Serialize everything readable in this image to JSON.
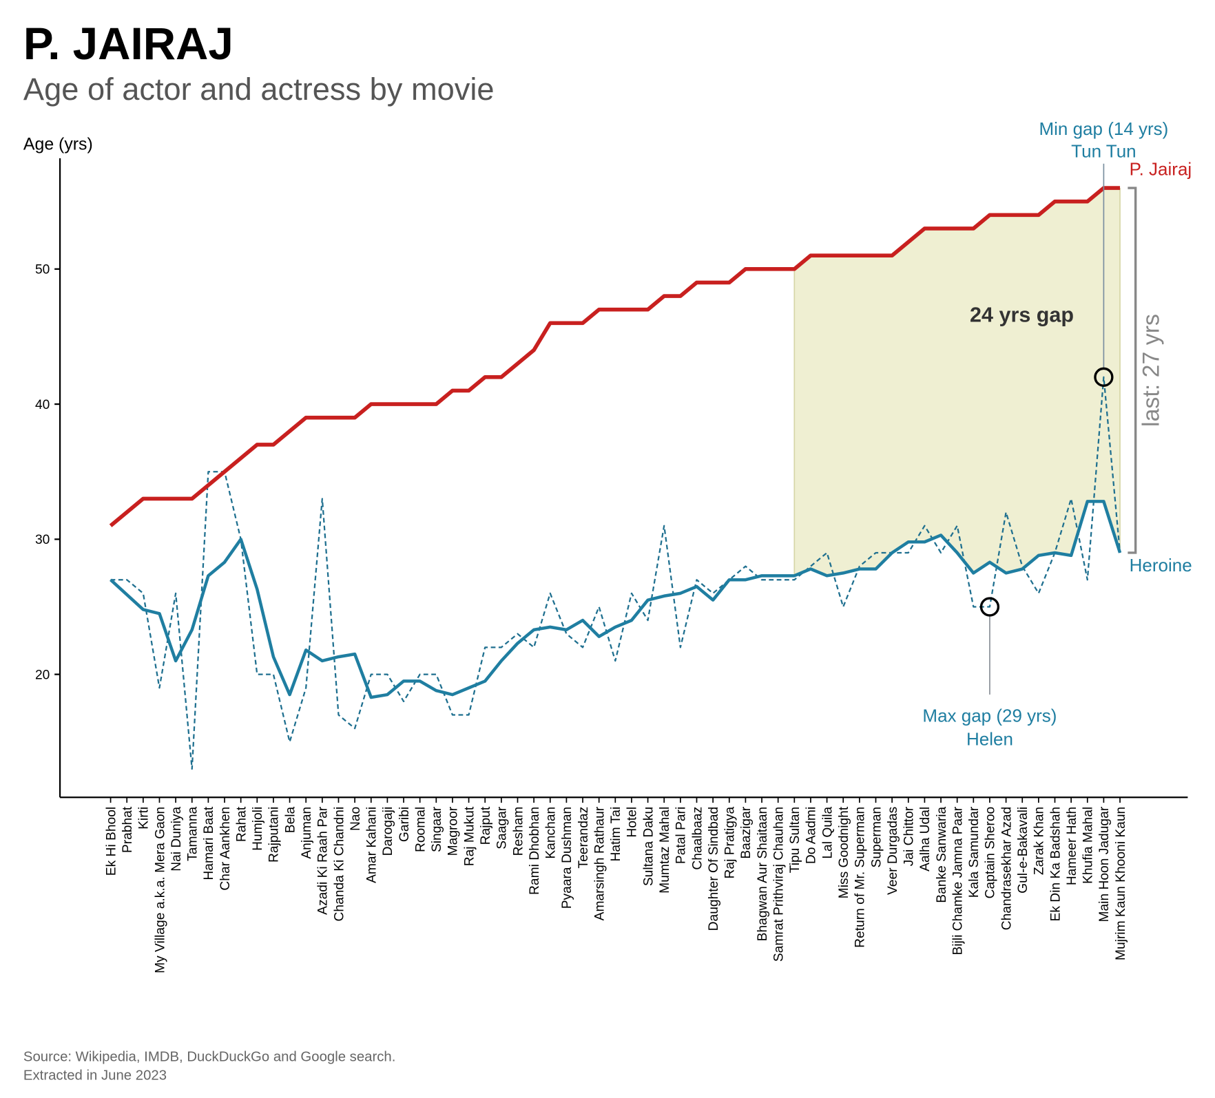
{
  "chart_data": {
    "type": "line",
    "title": "P. JAIRAJ",
    "subtitle": "Age of actor and actress by movie",
    "y_label": "Age (yrs)",
    "categories": [
      "Ek Hi Bhool",
      "Prabhat",
      "Kirti",
      "My Village a.k.a. Mera Gaon",
      "Nai Duniya",
      "Tamanna",
      "Hamari Baat",
      "Char Aankhen",
      "Rahat",
      "Humjoli",
      "Rajputani",
      "Bela",
      "Anjuman",
      "Azadi Ki Raah Par",
      "Chanda Ki Chandni",
      "Nao",
      "Amar Kahani",
      "Darogaji",
      "Garibi",
      "Roomal",
      "Singaar",
      "Magroor",
      "Raj Mukut",
      "Rajput",
      "Saagar",
      "Resham",
      "Rami Dhobhan",
      "Kanchan",
      "Pyaara Dushman",
      "Teerandaz",
      "Amarsingh Rathaur",
      "Hatim Tai",
      "Hotel",
      "Sultana Daku",
      "Mumtaz Mahal",
      "Patal Pari",
      "Chaalbaaz",
      "Daughter Of Sindbad",
      "Raj Pratigya",
      "Baazigar",
      "Bhagwan Aur Shaitaan",
      "Samrat Prithviraj Chauhan",
      "Tipu Sultan",
      "Do Aadmi",
      "Lal Quila",
      "Miss Goodnight",
      "Return of Mr. Superman",
      "Superman",
      "Veer Durgadas",
      "Jai Chittor",
      "Aalha Udal",
      "Banke Sanwaria",
      "Bijli Chamke Jamna Paar",
      "Kala Samundar",
      "Captain Sheroo",
      "Chandrasekhar Azad",
      "Gul-e-Bakavali",
      "Zarak Khan",
      "Ek Din Ka Badshah",
      "Hameer Hath",
      "Khufia Mahal",
      "Main Hoon Jadugar",
      "Mujrim Kaun Khooni Kaun"
    ],
    "series": [
      {
        "name": "P. Jairaj",
        "color": "#c8201f",
        "width": 5,
        "values": [
          31,
          32,
          33,
          33,
          33,
          33,
          34,
          35,
          36,
          37,
          37,
          38,
          39,
          39,
          39,
          39,
          40,
          40,
          40,
          40,
          40,
          41,
          41,
          42,
          42,
          43,
          44,
          46,
          46,
          46,
          47,
          47,
          47,
          47,
          48,
          48,
          49,
          49,
          49,
          50,
          50,
          50,
          50,
          51,
          51,
          51,
          51,
          51,
          51,
          52,
          53,
          53,
          53,
          53,
          54,
          54,
          54,
          54,
          55,
          55,
          55,
          56,
          56
        ]
      },
      {
        "name": "Heroine",
        "color": "#1f7ea1",
        "width": 4,
        "values": [
          27,
          25.9,
          24.8,
          24.5,
          21,
          23.3,
          27.3,
          28.3,
          30,
          26.3,
          21.3,
          18.5,
          21.8,
          21,
          21.3,
          21.5,
          18.3,
          18.5,
          19.5,
          19.5,
          18.8,
          18.5,
          19,
          19.5,
          21,
          22.3,
          23.3,
          23.5,
          23.3,
          24,
          22.8,
          23.5,
          24,
          25.5,
          25.8,
          26,
          26.5,
          25.5,
          27,
          27,
          27.3,
          27.3,
          27.3,
          27.8,
          27.3,
          27.5,
          27.8,
          27.8,
          29,
          29.8,
          29.8,
          30.3,
          29,
          27.5,
          28.3,
          27.5,
          27.8,
          28.8,
          29,
          28.8,
          32.8,
          32.8,
          29
        ]
      },
      {
        "color": "#1e6f8f",
        "width": 2,
        "dashed": true,
        "values": [
          27,
          27,
          26,
          19,
          26,
          13,
          35,
          35,
          30,
          20,
          20,
          15,
          19,
          33,
          17,
          16,
          20,
          20,
          18,
          20,
          20,
          17,
          17,
          22,
          22,
          23,
          22,
          26,
          23,
          22,
          25,
          21,
          26,
          24,
          31,
          22,
          27,
          26,
          27,
          28,
          27,
          27,
          27,
          28,
          29,
          25,
          28,
          29,
          29,
          29,
          31,
          29,
          31,
          25,
          25,
          32,
          28,
          26,
          29,
          33,
          27,
          42,
          29
        ]
      }
    ],
    "ylim": [
      10.9,
      58.2
    ],
    "yticks": [
      20,
      30,
      40,
      50
    ],
    "highlight_start": 42,
    "highlight_color": "#efefd2",
    "gap_label": "24 yrs gap",
    "last_label": "last: 27 yrs",
    "min_gap": {
      "label": "Min gap (14 yrs)",
      "name": "Tun Tun",
      "index": 61
    },
    "max_gap": {
      "label": "Max gap (29 yrs)",
      "name": "Helen",
      "index": 54
    },
    "source": [
      "Source: Wikipedia, IMDB, DuckDuckGo and Google search.",
      "Extracted in June 2023"
    ]
  }
}
